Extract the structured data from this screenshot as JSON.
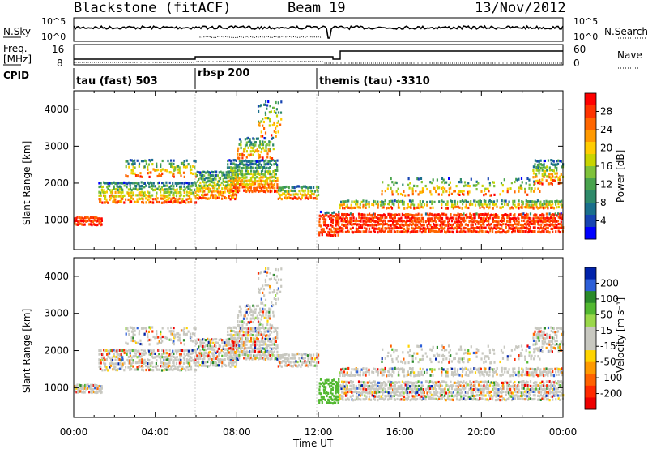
{
  "header": {
    "station": "Blackstone (fitACF)",
    "beam": "Beam 19",
    "date": "13/Nov/2012"
  },
  "top_panels": {
    "nsky_label": "N.Sky",
    "nsearch_label": "N.Search",
    "noise_ticks": [
      "10^5",
      "10^0"
    ],
    "freq_label": "Freq.",
    "freq_unit": "[MHz]",
    "freq_ticks": [
      "16",
      "8"
    ],
    "nave_label": "Nave",
    "nave_ticks": [
      "60",
      "0"
    ],
    "cpid_label": "CPID",
    "cpid_segments": [
      {
        "label": "tau (fast) 503",
        "start_hour": 0
      },
      {
        "label": "rbsp 200",
        "start_hour": 6
      },
      {
        "label": "themis (tau) -3310",
        "start_hour": 12
      }
    ]
  },
  "chart_data": [
    {
      "type": "heatmap",
      "name": "power",
      "ylabel": "Slant Range [km]",
      "ylim": [
        200,
        4500
      ],
      "yticks": [
        1000,
        2000,
        3000,
        4000
      ],
      "xlim": [
        0,
        24
      ],
      "colorbar": {
        "label": "Power [dB]",
        "ticks": [
          "28",
          "24",
          "20",
          "16",
          "12",
          "8",
          "4"
        ],
        "colors": [
          "#ff0000",
          "#ff3300",
          "#ff6600",
          "#ff9900",
          "#ffcc00",
          "#c8d400",
          "#7fc23a",
          "#49a34d",
          "#2e8a6a",
          "#1a6f8c",
          "#1744b2",
          "#0000ff"
        ]
      }
    },
    {
      "type": "heatmap",
      "name": "velocity",
      "ylabel": "Slant Range [km]",
      "ylim": [
        200,
        4500
      ],
      "yticks": [
        1000,
        2000,
        3000,
        4000
      ],
      "xlim": [
        0,
        24
      ],
      "colorbar": {
        "label": "Velocity [m s⁻¹]",
        "ticks": [
          "200",
          "100",
          "50",
          "15",
          "-15",
          "-50",
          "-100",
          "-200"
        ],
        "colors": [
          "#0022aa",
          "#2d5fd8",
          "#2a8a2a",
          "#52b830",
          "#9ad84a",
          "#c8c8c0",
          "#c8c8c0",
          "#ffd400",
          "#ff9a00",
          "#ff6200",
          "#ff2a00",
          "#ee0000"
        ]
      }
    }
  ],
  "xaxis": {
    "ticks": [
      "00:00",
      "04:00",
      "08:00",
      "12:00",
      "16:00",
      "20:00",
      "00:00"
    ],
    "label": "Time UT"
  }
}
